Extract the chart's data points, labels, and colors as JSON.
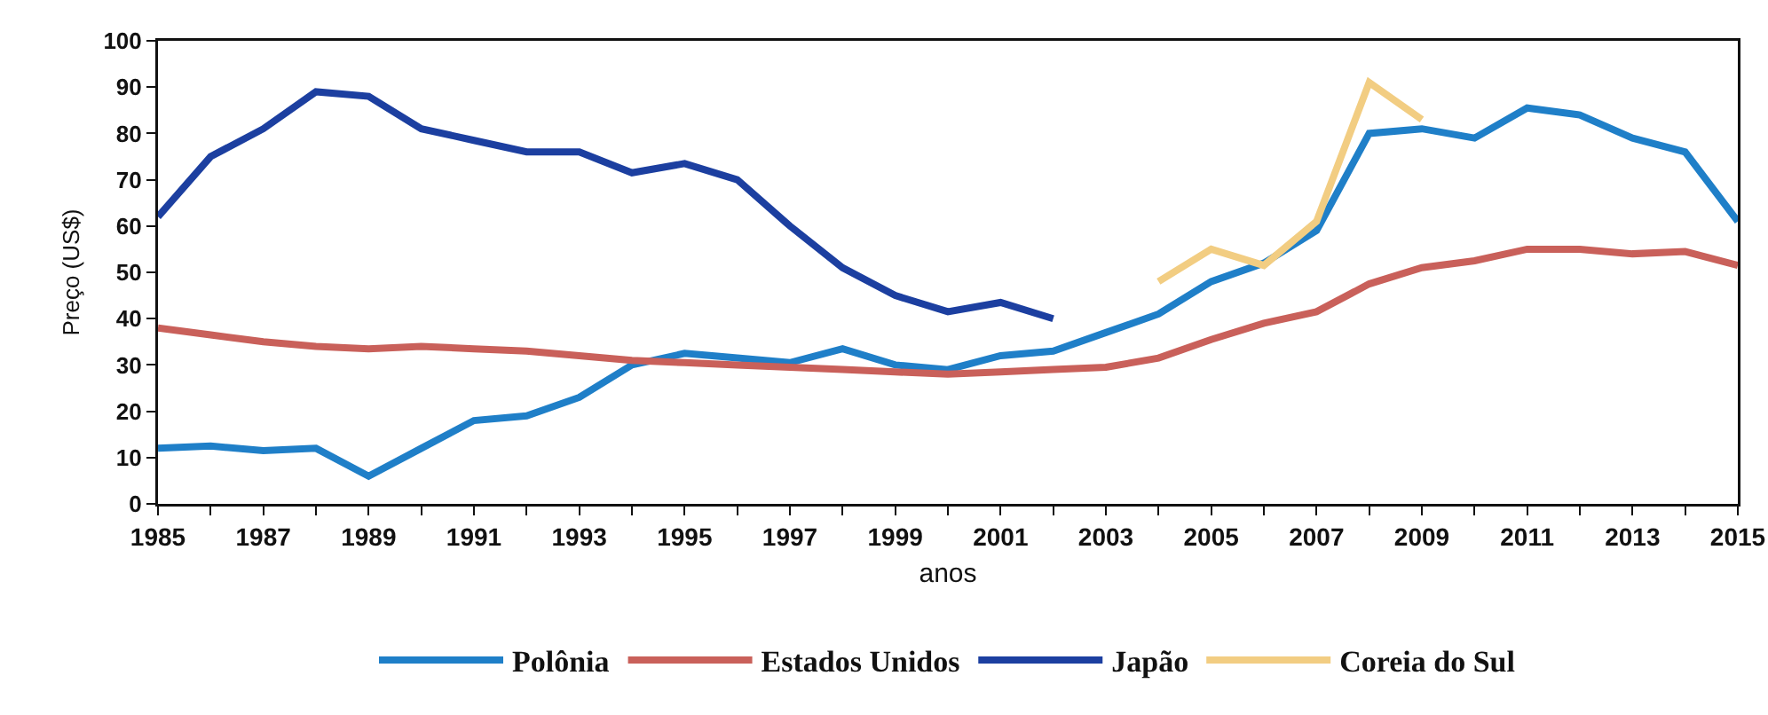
{
  "chart_data": {
    "type": "line",
    "xlabel": "anos",
    "ylabel": "Preço (US$)",
    "x": [
      1985,
      1986,
      1987,
      1988,
      1989,
      1990,
      1991,
      1992,
      1993,
      1994,
      1995,
      1996,
      1997,
      1998,
      1999,
      2000,
      2001,
      2002,
      2003,
      2004,
      2005,
      2006,
      2007,
      2008,
      2009,
      2010,
      2011,
      2012,
      2013,
      2014,
      2015
    ],
    "series": [
      {
        "name": "Polônia",
        "color": "#1f7fc8",
        "values": [
          12,
          12.5,
          11.5,
          12,
          6,
          12,
          18,
          19,
          23,
          30,
          32.5,
          31.5,
          30.5,
          33.5,
          30,
          29,
          32,
          33,
          37,
          41,
          48,
          52,
          59,
          80,
          81,
          79,
          85.5,
          84,
          79,
          76,
          61
        ]
      },
      {
        "name": "Estados Unidos",
        "color": "#c9605a",
        "values": [
          38,
          36.5,
          35,
          34,
          33.5,
          34,
          33.5,
          33,
          32,
          31,
          30.5,
          30,
          29.5,
          29,
          28.5,
          28,
          28.5,
          29,
          29.5,
          31.5,
          35.5,
          39,
          41.5,
          47.5,
          51,
          52.5,
          55,
          55,
          54,
          54.5,
          51.5
        ]
      },
      {
        "name": "Japão",
        "color": "#1c3fa0",
        "values": [
          62,
          75,
          81,
          89,
          88,
          81,
          78.5,
          76,
          76,
          71.5,
          73.5,
          70,
          60,
          51,
          45,
          41.5,
          43.5,
          40,
          null,
          null,
          null,
          null,
          null,
          null,
          null,
          null,
          null,
          null,
          null,
          null,
          null
        ]
      },
      {
        "name": "Coreia do Sul",
        "color": "#f2cd82",
        "values": [
          null,
          null,
          null,
          null,
          null,
          null,
          null,
          null,
          null,
          null,
          null,
          null,
          null,
          null,
          null,
          null,
          null,
          null,
          null,
          48,
          55,
          51.5,
          61,
          91,
          83,
          null,
          null,
          null,
          null,
          null,
          null
        ]
      }
    ],
    "xlim": [
      1985,
      2015
    ],
    "xticks": [
      1985,
      {
        "value": 1986,
        "label": null
      },
      1987,
      {
        "value": 1988,
        "label": null
      },
      1989,
      {
        "value": 1990,
        "label": null
      },
      1991,
      {
        "value": 1992,
        "label": null
      },
      1993,
      {
        "value": 1994,
        "label": null
      },
      1995,
      {
        "value": 1996,
        "label": null
      },
      1997,
      {
        "value": 1998,
        "label": null
      },
      1999,
      {
        "value": 2000,
        "label": null
      },
      2001,
      {
        "value": 2002,
        "label": null
      },
      2003,
      {
        "value": 2004,
        "label": null
      },
      2005,
      {
        "value": 2006,
        "label": null
      },
      2007,
      {
        "value": 2008,
        "label": null
      },
      2009,
      {
        "value": 2010,
        "label": null
      },
      2011,
      {
        "value": 2012,
        "label": null
      },
      2013,
      {
        "value": 2014,
        "label": null
      },
      2015
    ],
    "ylim": [
      0,
      100
    ],
    "yticks": [
      0,
      10,
      20,
      30,
      40,
      50,
      60,
      70,
      80,
      90,
      100
    ],
    "grid": false,
    "legend": "bottom",
    "marker": "none",
    "line_style": "solid"
  }
}
